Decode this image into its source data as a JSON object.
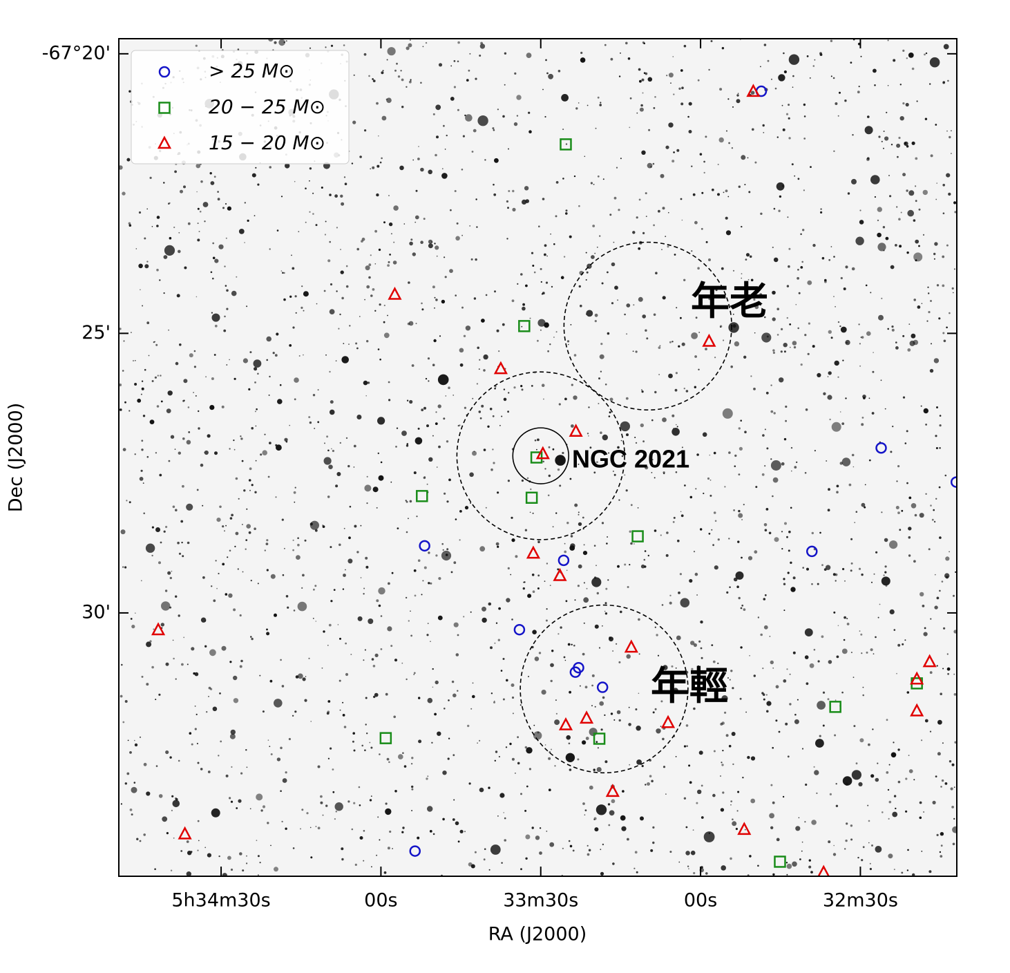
{
  "chart_data": {
    "type": "scatter",
    "xlabel": "RA (J2000)",
    "ylabel": "Dec (J2000)",
    "xlim": [
      169.2,
      11.9
    ],
    "xticks": [
      {
        "value": 150,
        "label": "5h34m30s"
      },
      {
        "value": 120,
        "label": "00s"
      },
      {
        "value": 90,
        "label": "33m30s"
      },
      {
        "value": 60,
        "label": "00s"
      },
      {
        "value": 30,
        "label": "32m30s"
      }
    ],
    "ylim": [
      19.73,
      34.71
    ],
    "yticks": [
      {
        "value": 20,
        "label": "-67°20'"
      },
      {
        "value": 25,
        "label": "25'"
      },
      {
        "value": 30,
        "label": "30'"
      }
    ],
    "legend": "upper left",
    "series": [
      {
        "name": "> 25 M⊙",
        "marker": "circle",
        "color": "#1414c8",
        "x": [
          48.6,
          26.1,
          12.0,
          39.1,
          111.8,
          85.7,
          94.0,
          82.9,
          83.5,
          78.4,
          113.6
        ],
        "y": [
          20.67,
          27.05,
          27.66,
          28.9,
          28.8,
          29.06,
          30.3,
          30.98,
          31.06,
          31.33,
          34.26
        ]
      },
      {
        "name": "20 − 25 M⊙",
        "marker": "square",
        "color": "#198c19",
        "x": [
          85.3,
          93.1,
          112.3,
          91.7,
          90.8,
          71.8,
          119.1,
          79.0,
          34.7,
          19.4,
          45.1
        ],
        "y": [
          21.62,
          24.87,
          27.91,
          27.94,
          27.22,
          28.63,
          32.24,
          32.25,
          31.68,
          31.26,
          34.45
        ]
      },
      {
        "name": "15 − 20 M⊙",
        "marker": "triangle",
        "color": "#e00000",
        "x": [
          50.1,
          117.4,
          97.5,
          83.4,
          89.6,
          58.4,
          91.4,
          86.4,
          161.8,
          73.0,
          17.0,
          19.4,
          19.4,
          85.3,
          81.4,
          66.1,
          76.5,
          51.8,
          156.8,
          36.9
        ],
        "y": [
          20.68,
          24.31,
          25.64,
          26.76,
          27.16,
          25.15,
          28.94,
          29.34,
          30.31,
          30.62,
          30.88,
          31.19,
          31.76,
          32.01,
          31.89,
          31.97,
          33.2,
          33.88,
          33.96,
          34.65
        ]
      }
    ],
    "regions": [
      {
        "label": "年老",
        "x": 69.9,
        "y": 24.87,
        "radius": 1.5,
        "style": "dashed"
      },
      {
        "label": "NGC 2021",
        "x": 90.0,
        "y": 27.19,
        "radius": 1.5,
        "style": "dashed"
      },
      {
        "x": 90.0,
        "y": 27.19,
        "radius": 0.5,
        "style": "solid"
      },
      {
        "label": "年輕",
        "x": 78.1,
        "y": 31.36,
        "radius": 1.5,
        "style": "dashed"
      }
    ]
  }
}
